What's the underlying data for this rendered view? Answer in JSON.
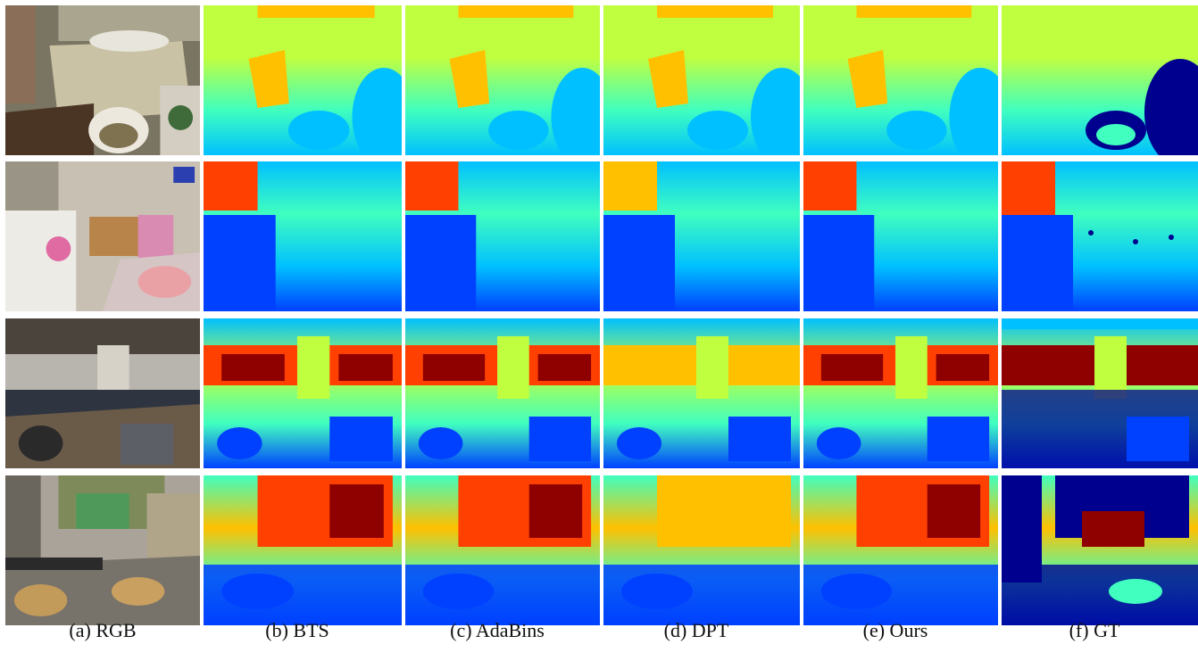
{
  "figure": {
    "captions": [
      "(a) RGB",
      "(b) BTS",
      "(c) AdaBins",
      "(d) DPT",
      "(e) Ours",
      "(f) GT"
    ],
    "columns": [
      {
        "key": "rgb",
        "kind": "photo"
      },
      {
        "key": "bts",
        "kind": "depth"
      },
      {
        "key": "adabins",
        "kind": "depth"
      },
      {
        "key": "dpt",
        "kind": "depth"
      },
      {
        "key": "ours",
        "kind": "depth"
      },
      {
        "key": "gt",
        "kind": "gt"
      }
    ],
    "rows": [
      {
        "scene": "bathroom"
      },
      {
        "scene": "playroom"
      },
      {
        "scene": "office"
      },
      {
        "scene": "cafeteria"
      }
    ],
    "colormap": [
      "#00008f",
      "#0040ff",
      "#00c0ff",
      "#40ffbf",
      "#c0ff40",
      "#ffc000",
      "#ff4000",
      "#8f0000"
    ]
  }
}
